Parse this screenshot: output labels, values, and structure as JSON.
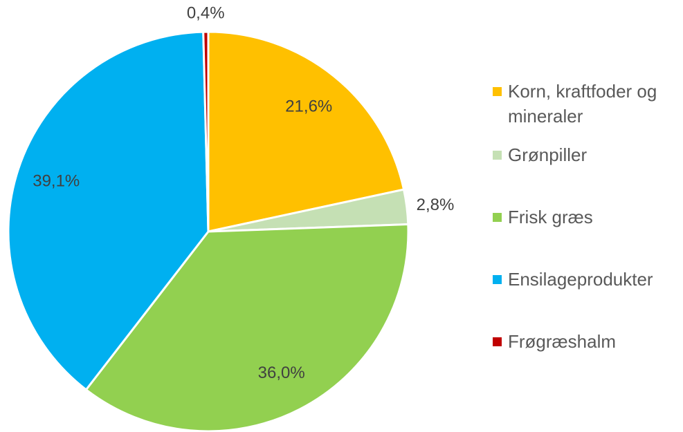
{
  "chart_data": {
    "type": "pie",
    "categories": [
      "Korn, kraftfoder og mineraler",
      "Grønpiller",
      "Frisk græs",
      "Ensilageprodukter",
      "Frøgræshalm"
    ],
    "values": [
      21.6,
      2.8,
      36.0,
      39.1,
      0.4
    ],
    "value_labels": [
      "21,6%",
      "2,8%",
      "36,0%",
      "39,1%",
      "0,4%"
    ],
    "colors": [
      "#FFC000",
      "#C5E0B4",
      "#92D050",
      "#00B0F0",
      "#C00000"
    ],
    "legend": "right"
  }
}
